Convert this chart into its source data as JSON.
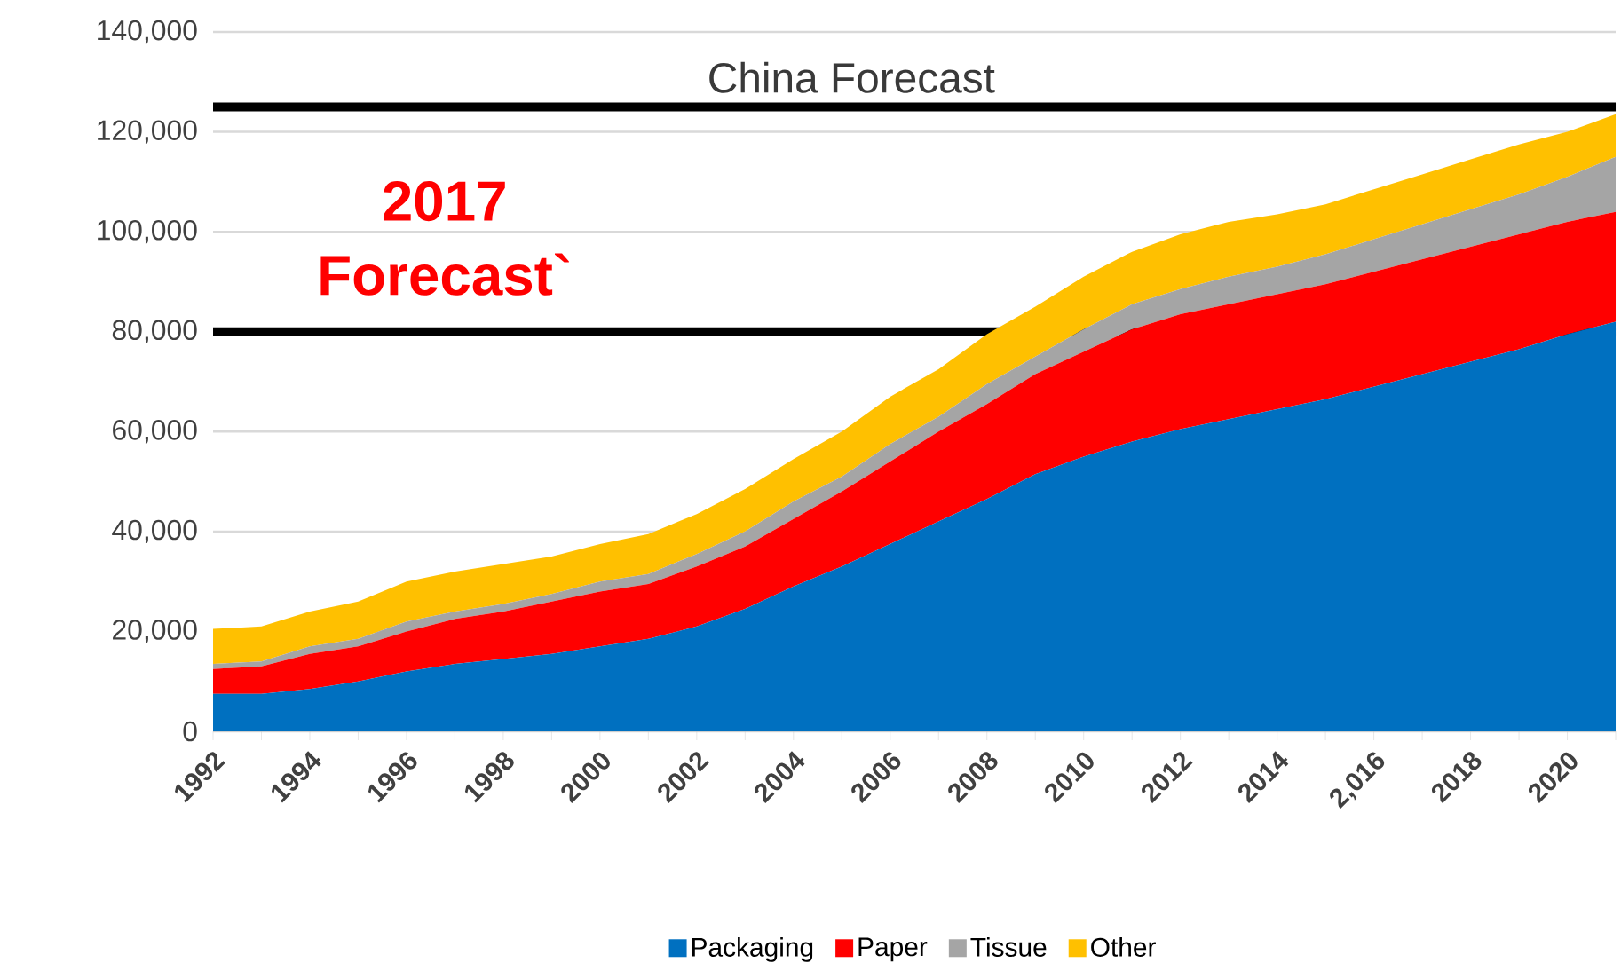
{
  "chart_data": {
    "type": "area",
    "title": "China Forecast",
    "stacked": true,
    "grid": "y",
    "legend": "bottom",
    "categories": [
      "1992",
      null,
      "1994",
      null,
      "1996",
      null,
      "1998",
      null,
      "2000",
      null,
      "2002",
      null,
      "2004",
      null,
      "2006",
      null,
      "2008",
      null,
      "2010",
      null,
      "2012",
      null,
      "2014",
      null,
      "2,016",
      null,
      "2018",
      null,
      "2020",
      null
    ],
    "series": [
      {
        "name": "Packaging",
        "color": "#0070c0",
        "values": [
          7500,
          7500,
          8500,
          10000,
          12000,
          13500,
          14500,
          15500,
          17000,
          18500,
          21000,
          24500,
          29000,
          33000,
          37500,
          42000,
          46500,
          51500,
          55000,
          58000,
          60500,
          62500,
          64500,
          66500,
          69000,
          71500,
          74000,
          76500,
          79500,
          82000
        ]
      },
      {
        "name": "Paper",
        "color": "#ff0000",
        "values": [
          5000,
          5500,
          7000,
          7000,
          8000,
          9000,
          9500,
          10500,
          11000,
          11000,
          12000,
          12500,
          13500,
          15000,
          16500,
          18000,
          19000,
          20000,
          21000,
          22500,
          23000,
          23000,
          23000,
          23000,
          23000,
          23000,
          23000,
          23000,
          22500,
          22000
        ]
      },
      {
        "name": "Tissue",
        "color": "#a5a5a5",
        "values": [
          1000,
          1000,
          1500,
          1500,
          2000,
          1500,
          1500,
          1500,
          2000,
          2000,
          2500,
          3000,
          3500,
          3000,
          3500,
          3000,
          4000,
          3500,
          4500,
          5000,
          5000,
          5500,
          5500,
          6000,
          6500,
          7000,
          7500,
          8000,
          9000,
          11000
        ]
      },
      {
        "name": "Other",
        "color": "#ffc000",
        "values": [
          7000,
          7000,
          7000,
          7500,
          8000,
          8000,
          8000,
          7500,
          7500,
          8000,
          8000,
          8500,
          8500,
          9000,
          9500,
          9500,
          10000,
          10000,
          10500,
          10500,
          11000,
          11000,
          10500,
          10000,
          10000,
          10000,
          10000,
          10000,
          9000,
          8500
        ]
      }
    ],
    "ylim": [
      0,
      140000
    ],
    "yticks": [
      0,
      {
        "value": 20000,
        "label": "20,000"
      },
      {
        "value": 40000,
        "label": "40,000"
      },
      {
        "value": 60000,
        "label": "60,000"
      },
      {
        "value": 80000,
        "label": "80,000"
      },
      {
        "value": 100000,
        "label": "100,000"
      },
      {
        "value": 120000,
        "label": "120,000"
      },
      {
        "value": 140000,
        "label": "140,000"
      }
    ],
    "ref_lines": [
      {
        "axis": "y",
        "value": 125000,
        "color": "#000000"
      },
      {
        "axis": "y",
        "value": 80000,
        "color": "#000000"
      }
    ],
    "annotations": [
      "2017 Forecast`"
    ]
  }
}
